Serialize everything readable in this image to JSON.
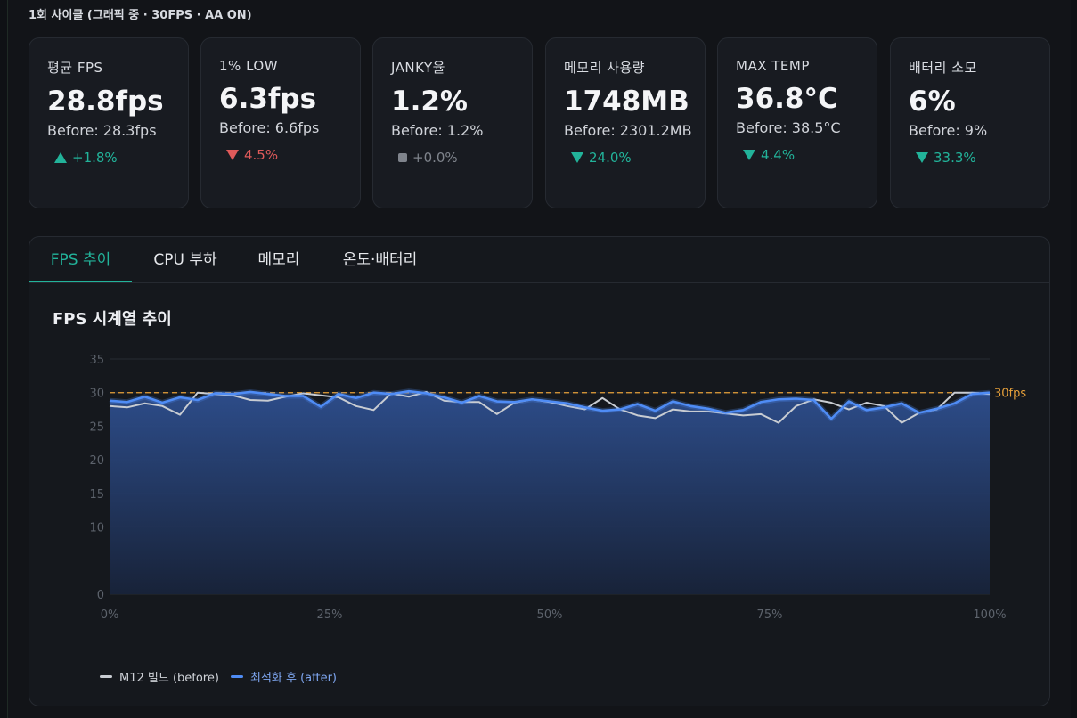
{
  "header": {
    "subtitle": "1회 사이클 (그래픽 중 · 30FPS · AA ON)"
  },
  "kpis": [
    {
      "label": "평균 FPS",
      "value": "28.8fps",
      "before": "Before: 28.3fps",
      "delta": "+1.8%",
      "trend": "up",
      "color": "#22b39a"
    },
    {
      "label": "1% LOW",
      "value": "6.3fps",
      "before": "Before: 6.6fps",
      "delta": "4.5%",
      "trend": "down",
      "color": "#e05a5a"
    },
    {
      "label": "JANKY율",
      "value": "1.2%",
      "before": "Before: 1.2%",
      "delta": "+0.0%",
      "trend": "flat",
      "color": "#7f848c"
    },
    {
      "label": "메모리 사용량",
      "value": "1748MB",
      "before": "Before: 2301.2MB",
      "delta": "24.0%",
      "trend": "down",
      "color": "#22b39a"
    },
    {
      "label": "MAX TEMP",
      "value": "36.8°C",
      "before": "Before: 38.5°C",
      "delta": "4.4%",
      "trend": "down",
      "color": "#22b39a"
    },
    {
      "label": "배터리 소모",
      "value": "6%",
      "before": "Before: 9%",
      "delta": "33.3%",
      "trend": "down",
      "color": "#22b39a"
    }
  ],
  "tabs": [
    {
      "label": "FPS 추이",
      "active": true
    },
    {
      "label": "CPU 부하",
      "active": false
    },
    {
      "label": "메모리",
      "active": false
    },
    {
      "label": "온도·배터리",
      "active": false
    }
  ],
  "chart_title": "FPS 시계열 추이",
  "chart_data": {
    "type": "area",
    "title": "FPS 시계열 추이",
    "xlabel": "",
    "ylabel": "",
    "x_ticks": [
      "0%",
      "25%",
      "50%",
      "75%",
      "100%"
    ],
    "y_ticks": [
      "0",
      "10",
      "15",
      "20",
      "25",
      "30",
      "35"
    ],
    "ylim": [
      0,
      35
    ],
    "xlim": [
      0,
      100
    ],
    "grid": true,
    "reference_line": {
      "value": 30,
      "label": "30fps",
      "color": "#e8a13a"
    },
    "x": [
      0,
      2,
      4,
      6,
      8,
      10,
      12,
      14,
      16,
      18,
      20,
      22,
      24,
      26,
      28,
      30,
      32,
      34,
      36,
      38,
      40,
      42,
      44,
      46,
      48,
      50,
      52,
      54,
      56,
      58,
      60,
      62,
      64,
      66,
      68,
      70,
      72,
      74,
      76,
      78,
      80,
      82,
      84,
      86,
      88,
      90,
      92,
      94,
      96,
      98,
      100
    ],
    "series": [
      {
        "name": "M12 빌드 (before)",
        "color": "#c8ccd2",
        "values": [
          28.0,
          27.8,
          28.4,
          28.0,
          26.7,
          30.0,
          29.8,
          29.6,
          28.9,
          28.8,
          29.4,
          29.9,
          29.6,
          29.3,
          28.0,
          27.4,
          29.9,
          29.4,
          30.1,
          28.8,
          28.6,
          28.6,
          26.8,
          28.5,
          29.0,
          28.6,
          28.0,
          27.5,
          29.2,
          27.5,
          26.6,
          26.2,
          27.5,
          27.2,
          27.2,
          26.9,
          26.6,
          26.8,
          25.5,
          28.0,
          29.0,
          28.5,
          27.5,
          28.5,
          28.0,
          25.5,
          27.0,
          27.5,
          30.0,
          30.0,
          29.8
        ]
      },
      {
        "name": "최적화 후 (after)",
        "color": "#4f8cf5",
        "values": [
          28.8,
          28.6,
          29.4,
          28.5,
          29.3,
          28.9,
          29.9,
          29.8,
          30.1,
          29.8,
          29.5,
          29.5,
          27.9,
          29.8,
          29.2,
          30.0,
          29.8,
          30.2,
          29.9,
          29.3,
          28.5,
          29.5,
          28.7,
          28.6,
          29.0,
          28.7,
          28.4,
          27.8,
          27.3,
          27.5,
          28.3,
          27.3,
          28.7,
          28.0,
          27.6,
          27.0,
          27.4,
          28.6,
          29.0,
          29.1,
          28.9,
          26.1,
          28.7,
          27.4,
          27.8,
          28.4,
          27.0,
          27.6,
          28.4,
          29.8,
          30.0
        ]
      }
    ],
    "legend": "bottom-left"
  }
}
